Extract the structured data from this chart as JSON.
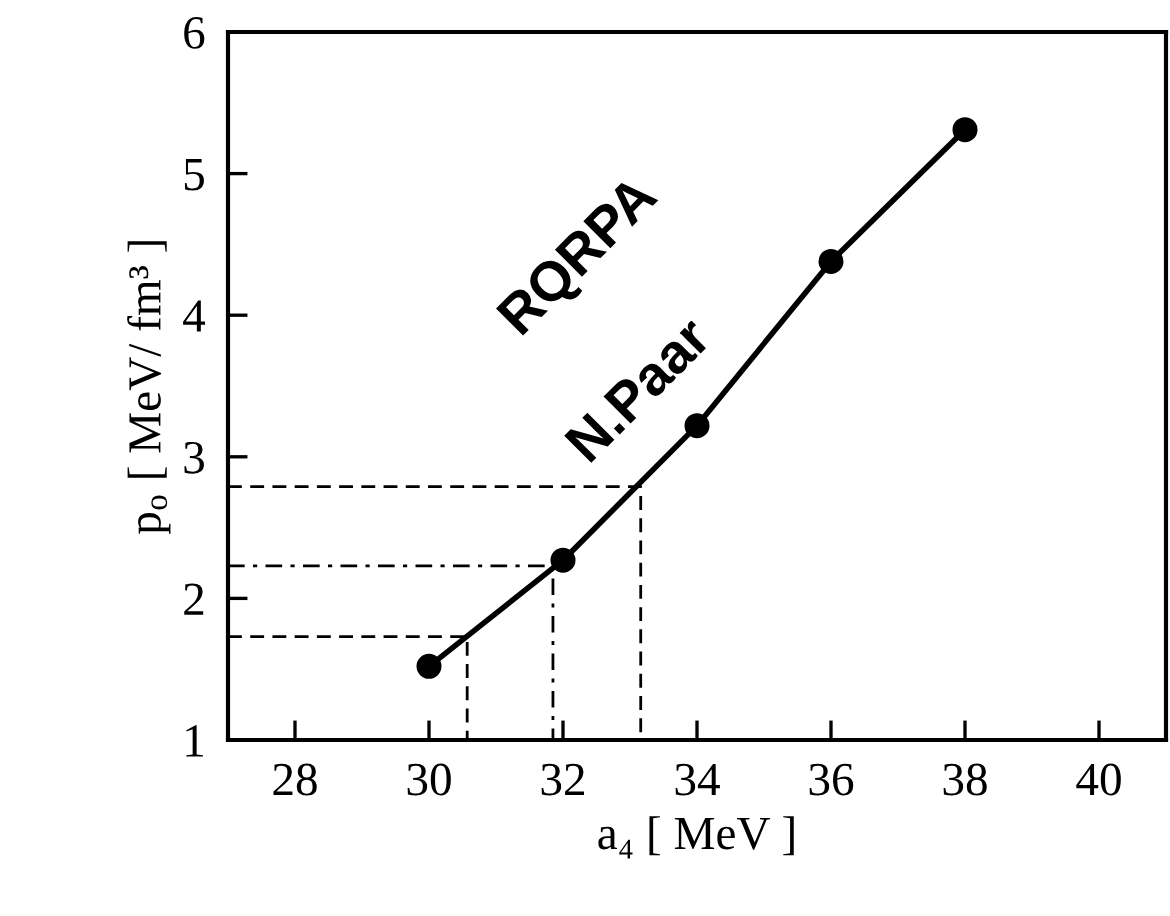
{
  "chart_data": {
    "type": "line",
    "xlabel": "a₄ [ MeV ]",
    "ylabel": "p$_{o}$ [ MeV/ fm³ ]",
    "xlim": [
      27,
      41
    ],
    "xticks": [
      28,
      30,
      32,
      34,
      36,
      38,
      40
    ],
    "ylim": [
      1,
      6
    ],
    "yticks": [
      1,
      2,
      3,
      4,
      5,
      6
    ],
    "grid": false,
    "legend": false,
    "series": [
      {
        "color": "#000000",
        "marker": "circle",
        "line_style": "solid",
        "x": [
          30,
          32,
          34,
          36,
          38
        ],
        "values": [
          1.52,
          2.27,
          3.22,
          4.38,
          5.31
        ]
      },
      {
        "color": "#000000",
        "marker": "none",
        "line_style": "dashed",
        "x": [
          27,
          33.16,
          33.16
        ],
        "values": [
          2.79,
          2.79,
          1
        ]
      },
      {
        "color": "#000000",
        "marker": "none",
        "line_style": "dashdot",
        "x": [
          27,
          31.85,
          31.85
        ],
        "values": [
          2.23,
          2.23,
          1
        ]
      },
      {
        "color": "#000000",
        "marker": "none",
        "line_style": "dashed",
        "x": [
          27,
          30.57,
          30.57
        ],
        "values": [
          1.73,
          1.73,
          1
        ]
      }
    ],
    "annotations": [
      "RQRPA",
      "N.Paar"
    ]
  }
}
